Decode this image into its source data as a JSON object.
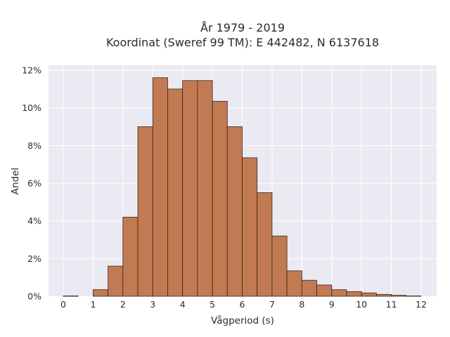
{
  "chart_data": {
    "type": "bar",
    "title": "År 1979 - 2019",
    "subtitle": "Koordinat (Sweref 99 TM): E 442482, N 6137618",
    "xlabel": "Vågperiod (s)",
    "ylabel": "Andel",
    "bin_width": 0.5,
    "xlim": [
      -0.5,
      12.5
    ],
    "ylim": [
      0,
      12
    ],
    "x_ticks": [
      0,
      1,
      2,
      3,
      4,
      5,
      6,
      7,
      8,
      9,
      10,
      11,
      12
    ],
    "y_ticks": [
      0,
      2,
      4,
      6,
      8,
      10,
      12
    ],
    "y_tick_labels": [
      "0%",
      "2%",
      "4%",
      "6%",
      "8%",
      "10%",
      "12%"
    ],
    "grid": true,
    "bin_starts": [
      0,
      0.5,
      1,
      1.5,
      2,
      2.5,
      3,
      3.5,
      4,
      4.5,
      5,
      5.5,
      6,
      6.5,
      7,
      7.5,
      8,
      8.5,
      9,
      9.5,
      10,
      10.5,
      11,
      11.5
    ],
    "values": [
      0.02,
      0,
      0.35,
      1.6,
      4.2,
      9.0,
      11.6,
      11.0,
      11.45,
      11.45,
      10.35,
      9.0,
      7.35,
      5.5,
      3.2,
      1.35,
      0.85,
      0.6,
      0.35,
      0.25,
      0.18,
      0.1,
      0.05,
      0.02
    ],
    "colors": {
      "bar_fill": "#c17a52",
      "bar_edge": "#3d2416",
      "plot_background": "#eaeaf2",
      "grid": "#ffffff"
    }
  }
}
